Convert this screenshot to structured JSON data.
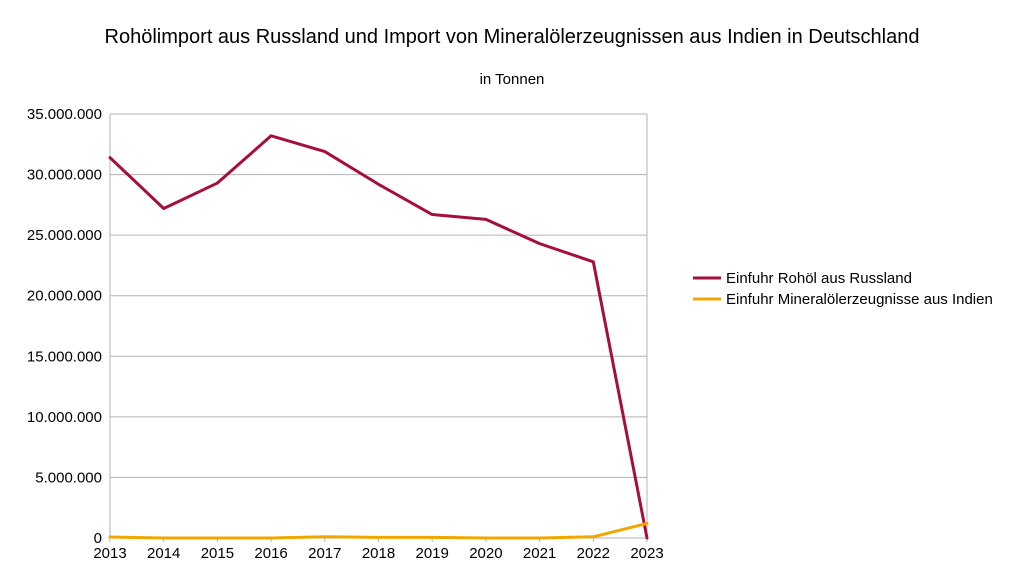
{
  "chart_data": {
    "type": "line",
    "title": "Rohölimport aus Russland und Import von Mineralölerzeugnissen aus Indien in Deutschland",
    "subtitle": "in Tonnen",
    "xlabel": "",
    "ylabel": "",
    "categories": [
      "2013",
      "2014",
      "2015",
      "2016",
      "2017",
      "2018",
      "2019",
      "2020",
      "2021",
      "2022",
      "2023"
    ],
    "ylim": [
      0,
      35000000
    ],
    "yticks": [
      0,
      5000000,
      10000000,
      15000000,
      20000000,
      25000000,
      30000000,
      35000000
    ],
    "ytick_labels": [
      "0",
      "5.000.000",
      "10.000.000",
      "15.000.000",
      "20.000.000",
      "25.000.000",
      "30.000.000",
      "35.000.000"
    ],
    "grid": true,
    "legend_position": "right",
    "series": [
      {
        "name": "Einfuhr Rohöl aus Russland",
        "color": "#A50F3C",
        "values": [
          31400000,
          27200000,
          29300000,
          33200000,
          31900000,
          29200000,
          26700000,
          26300000,
          24300000,
          22800000,
          0
        ]
      },
      {
        "name": "Einfuhr Mineralölerzeugnisse aus Indien",
        "color": "#F0A800",
        "values": [
          80000,
          0,
          0,
          0,
          100000,
          50000,
          50000,
          0,
          0,
          100000,
          1200000
        ]
      }
    ]
  }
}
